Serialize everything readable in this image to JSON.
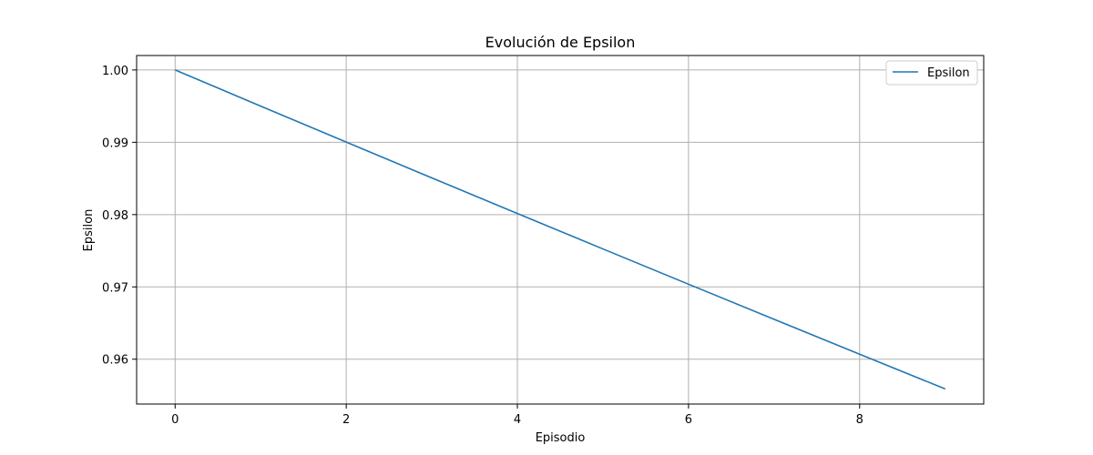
{
  "chart_data": {
    "type": "line",
    "title": "Evolución de Epsilon",
    "xlabel": "Episodio",
    "ylabel": "Epsilon",
    "xlim": [
      -0.45,
      9.45
    ],
    "ylim": [
      0.9538,
      1.002
    ],
    "xticks": [
      0,
      2,
      4,
      6,
      8
    ],
    "xtick_labels": [
      "0",
      "2",
      "4",
      "6",
      "8"
    ],
    "yticks": [
      0.96,
      0.97,
      0.98,
      0.99,
      1.0
    ],
    "ytick_labels": [
      "0.96",
      "0.97",
      "0.98",
      "0.99",
      "1.00"
    ],
    "grid": true,
    "legend": "top-right",
    "series": [
      {
        "name": "Epsilon",
        "color": "#1f77b4",
        "x": [
          0,
          1,
          2,
          3,
          4,
          5,
          6,
          7,
          8,
          9
        ],
        "y": [
          1.0,
          0.995,
          0.990025,
          0.985075,
          0.98015,
          0.975249,
          0.970373,
          0.965521,
          0.960693,
          0.95589
        ]
      }
    ]
  }
}
